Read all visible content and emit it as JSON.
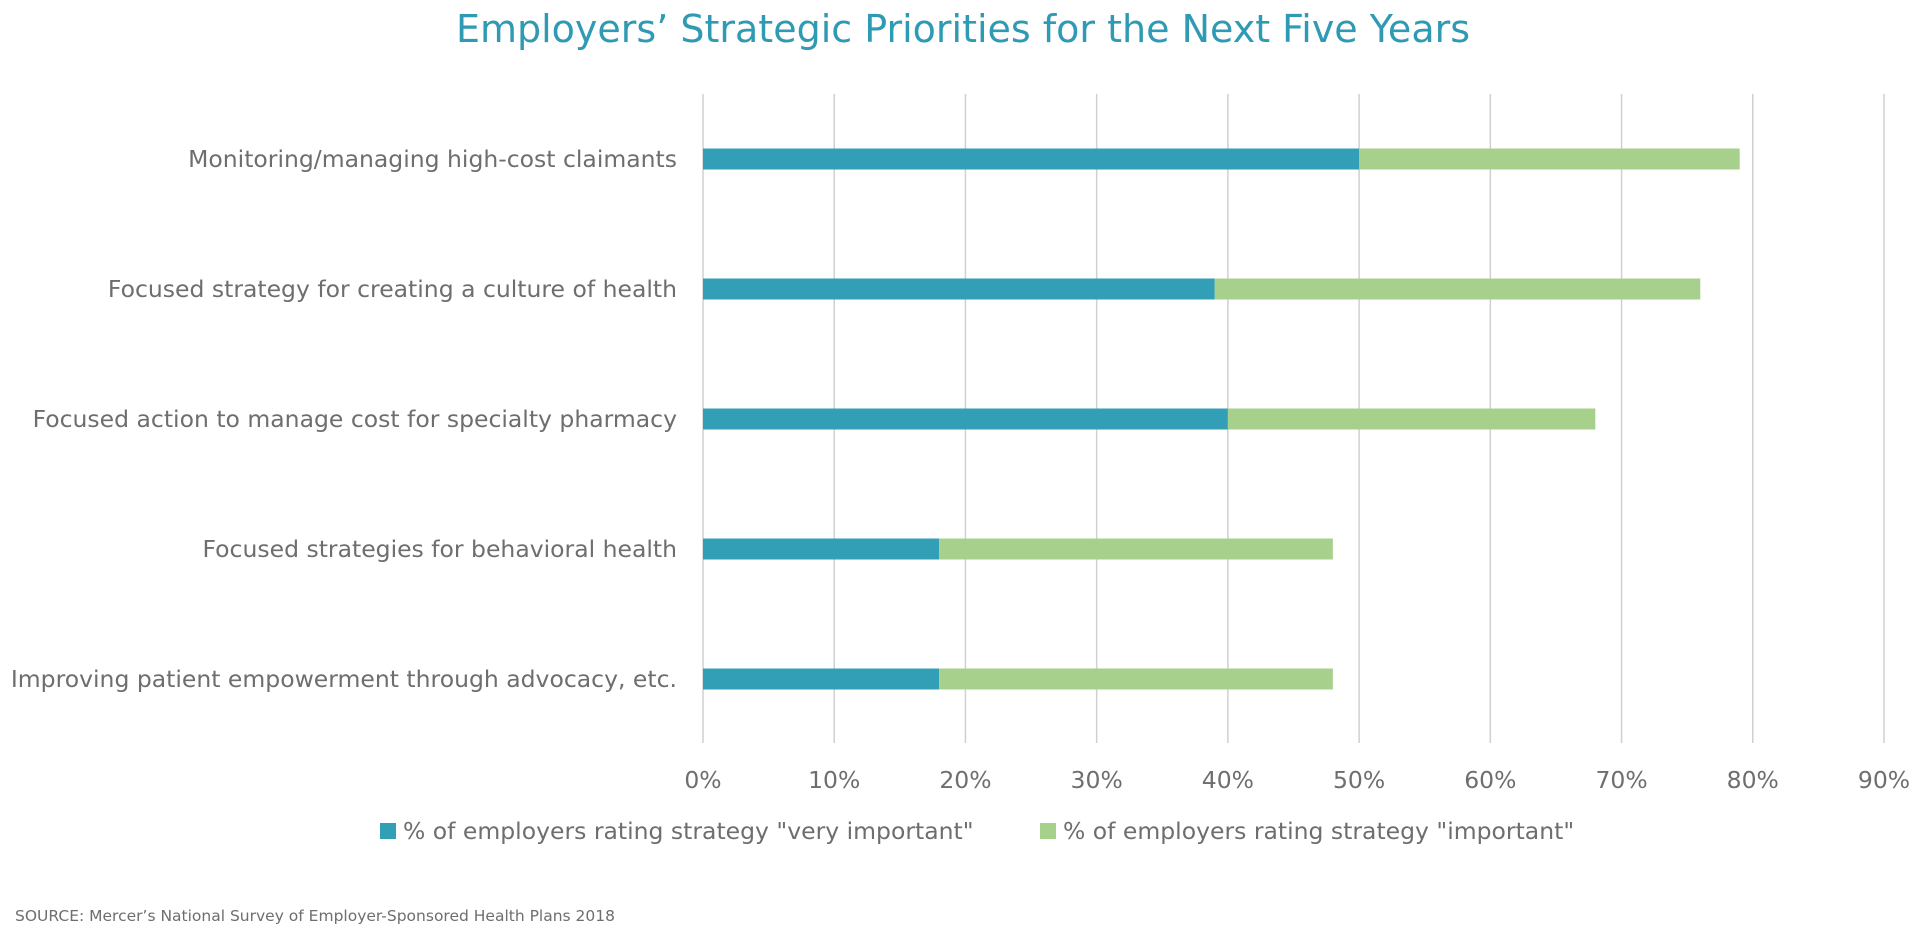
{
  "chart_data": {
    "type": "bar",
    "orientation": "horizontal",
    "stacked": true,
    "title": "Employers’ Strategic Priorities for the Next Five Years",
    "categories": [
      "Monitoring/managing high-cost claimants",
      "Focused strategy for creating a culture of health",
      "Focused action to manage cost for specialty pharmacy",
      "Focused strategies for behavioral health",
      "Improving patient empowerment through advocacy, etc."
    ],
    "series": [
      {
        "name": "% of employers rating strategy \"very important\"",
        "color": "#329fb7",
        "values": [
          0.5,
          0.39,
          0.4,
          0.18,
          0.18
        ]
      },
      {
        "name": "% of employers rating strategy \"important\"",
        "color": "#a8d08d",
        "values": [
          0.29,
          0.37,
          0.28,
          0.3,
          0.3
        ]
      }
    ],
    "xlim": [
      0,
      0.9
    ],
    "xticks": [
      0,
      0.1,
      0.2,
      0.3,
      0.4,
      0.5,
      0.6,
      0.7,
      0.8,
      0.9
    ],
    "xtick_labels": [
      "0%",
      "10%",
      "20%",
      "30%",
      "40%",
      "50%",
      "60%",
      "70%",
      "80%",
      "90%"
    ],
    "grid": "vertical",
    "legend_position": "bottom",
    "source": "SOURCE: Mercer’s National Survey of Employer-Sponsored Health Plans 2018"
  }
}
